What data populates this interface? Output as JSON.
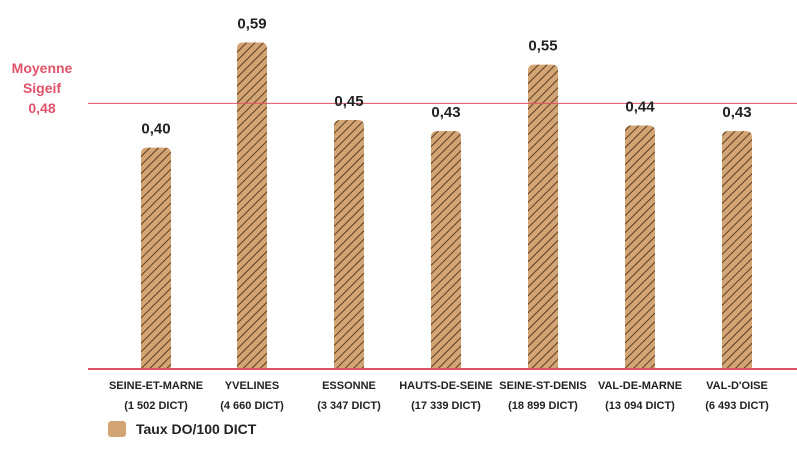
{
  "chart_data": {
    "type": "bar",
    "categories": [
      "SEINE-ET-MARNE",
      "YVELINES",
      "ESSONNE",
      "HAUTS-DE-SEINE",
      "SEINE-ST-DENIS",
      "VAL-DE-MARNE",
      "VAL-D'OISE"
    ],
    "sublabels": [
      "(1 502 DICT)",
      "(4 660 DICT)",
      "(3 347 DICT)",
      "(17 339 DICT)",
      "(18 899 DICT)",
      "(13 094 DICT)",
      "(6 493 DICT)"
    ],
    "values": [
      0.4,
      0.59,
      0.45,
      0.43,
      0.55,
      0.44,
      0.43
    ],
    "value_labels": [
      "0,40",
      "0,59",
      "0,45",
      "0,43",
      "0,55",
      "0,44",
      "0,43"
    ],
    "ylim": [
      0,
      0.6
    ],
    "reference_line": {
      "value": 0.48,
      "label_line1": "Moyenne",
      "label_line2": "Sigeif",
      "label_value": "0,48",
      "color": "#e0526a"
    },
    "legend": {
      "label": "Taux DO/100 DICT",
      "placement": "bottom-left"
    },
    "bar_color": "#d4a574",
    "hatch_color": "#5a3d22",
    "grid": false
  }
}
